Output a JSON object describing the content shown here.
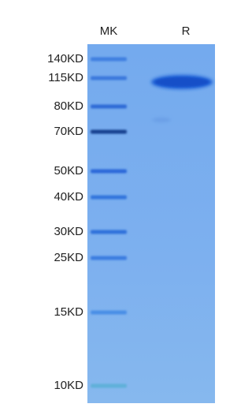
{
  "lanes": [
    "MK",
    "R"
  ],
  "markers": [
    "140KD",
    "115KD",
    "80KD",
    "70KD",
    "50KD",
    "40KD",
    "30KD",
    "25KD",
    "15KD",
    "10KD"
  ]
}
